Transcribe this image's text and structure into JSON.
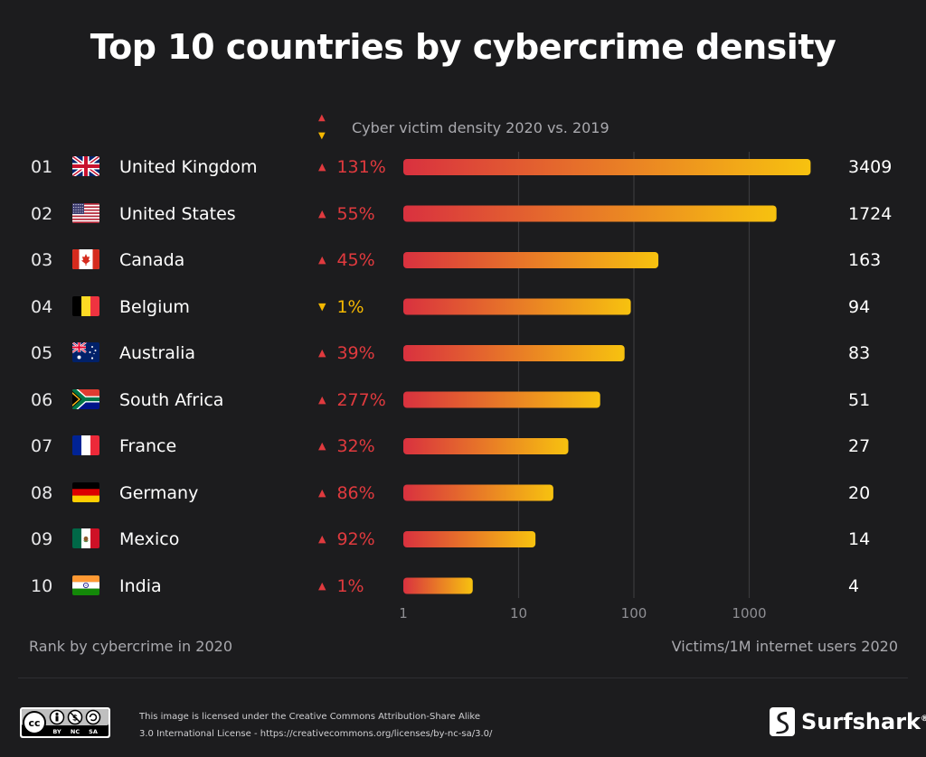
{
  "title": "Top 10 countries by cybercrime density",
  "legend": {
    "label": "Cyber victim density 2020 vs. 2019"
  },
  "footer": {
    "left_label": "Rank by cybercrime in 2020",
    "right_label": "Victims/1M internet users 2020",
    "license_line1": "This image is licensed under the Creative Commons Attribution-Share Alike",
    "license_line2": "3.0 International License - https://creativecommons.org/licenses/by-nc-sa/3.0/",
    "cc_badge": [
      "BY",
      "NC",
      "SA"
    ],
    "brand": "Surfshark"
  },
  "colors": {
    "background": "#1c1c1e",
    "increase": "#e03a3e",
    "decrease": "#f5b800",
    "bar_start": "#d9313f",
    "bar_end": "#f7c20f"
  },
  "chart_data": {
    "type": "bar",
    "orientation": "horizontal",
    "scale": "log",
    "xlim": [
      1,
      3409
    ],
    "ticks": [
      "1",
      "10",
      "100",
      "1000"
    ],
    "tick_values": [
      1,
      10,
      100,
      1000
    ],
    "rows": [
      {
        "rank": "01",
        "country": "United Kingdom",
        "flag": "uk-flag-icon",
        "direction": "up",
        "change": "131%",
        "value": 3409
      },
      {
        "rank": "02",
        "country": "United States",
        "flag": "us-flag-icon",
        "direction": "up",
        "change": "55%",
        "value": 1724
      },
      {
        "rank": "03",
        "country": "Canada",
        "flag": "canada-flag-icon",
        "direction": "up",
        "change": "45%",
        "value": 163
      },
      {
        "rank": "04",
        "country": "Belgium",
        "flag": "belgium-flag-icon",
        "direction": "down",
        "change": "1%",
        "value": 94
      },
      {
        "rank": "05",
        "country": "Australia",
        "flag": "australia-flag-icon",
        "direction": "up",
        "change": "39%",
        "value": 83
      },
      {
        "rank": "06",
        "country": "South Africa",
        "flag": "south-africa-flag-icon",
        "direction": "up",
        "change": "277%",
        "value": 51
      },
      {
        "rank": "07",
        "country": "France",
        "flag": "france-flag-icon",
        "direction": "up",
        "change": "32%",
        "value": 27
      },
      {
        "rank": "08",
        "country": "Germany",
        "flag": "germany-flag-icon",
        "direction": "up",
        "change": "86%",
        "value": 20
      },
      {
        "rank": "09",
        "country": "Mexico",
        "flag": "mexico-flag-icon",
        "direction": "up",
        "change": "92%",
        "value": 14
      },
      {
        "rank": "10",
        "country": "India",
        "flag": "india-flag-icon",
        "direction": "up",
        "change": "1%",
        "value": 4
      }
    ]
  }
}
